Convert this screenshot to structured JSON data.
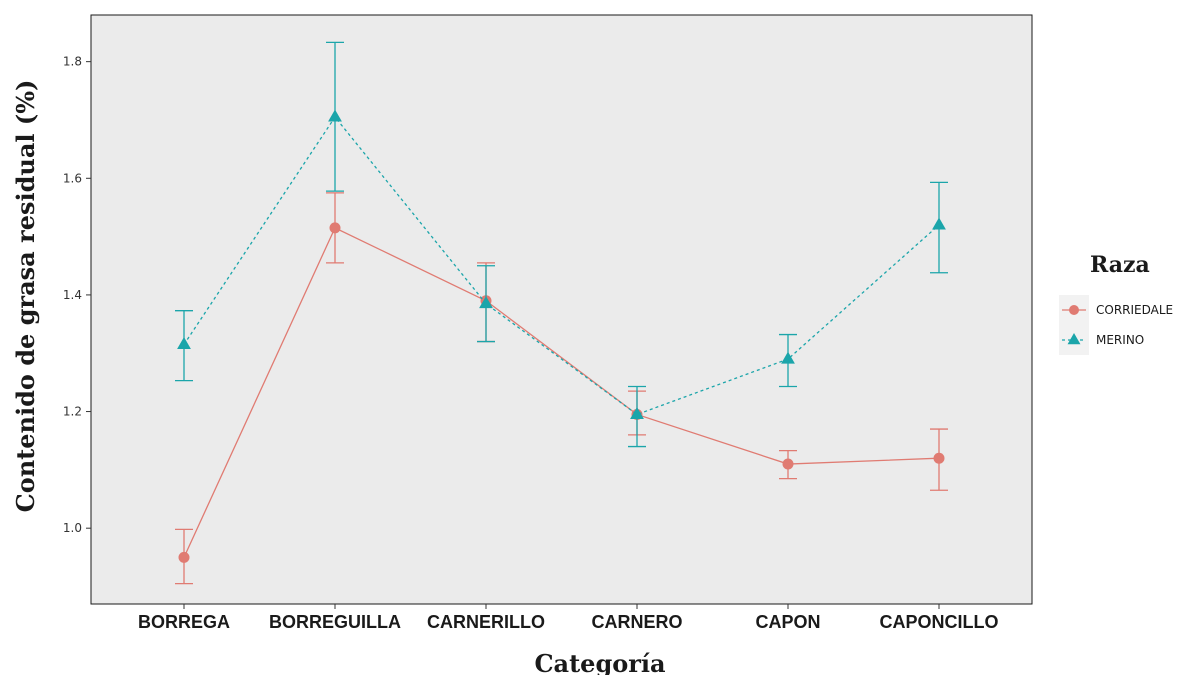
{
  "chart_data": {
    "type": "line",
    "xlabel": "Categoría",
    "ylabel": "Contenido de grasa residual (%)",
    "categories": [
      "BORREGA",
      "BORREGUILLA",
      "CARNERILLO",
      "CARNERO",
      "CAPON",
      "CAPONCILLO"
    ],
    "ylim": [
      0.87,
      1.88
    ],
    "yticks": [
      1.0,
      1.2,
      1.4,
      1.6,
      1.8
    ],
    "ytick_labels": [
      "1.0",
      "1.2",
      "1.4",
      "1.6",
      "1.8"
    ],
    "grid": false,
    "legend": {
      "title": "Raza",
      "placement": "right"
    },
    "series": [
      {
        "name": "CORRIEDALE",
        "color": "#e07b72",
        "marker": "circle",
        "line_style": "solid",
        "values": [
          0.95,
          1.515,
          1.39,
          1.195,
          1.11,
          1.12
        ],
        "error_low": [
          0.905,
          1.455,
          1.32,
          1.16,
          1.085,
          1.065
        ],
        "error_high": [
          0.998,
          1.575,
          1.455,
          1.235,
          1.133,
          1.17
        ]
      },
      {
        "name": "MERINO",
        "color": "#1ba5aa",
        "marker": "triangle",
        "line_style": "dotted",
        "values": [
          1.315,
          1.705,
          1.385,
          1.195,
          1.29,
          1.52
        ],
        "error_low": [
          1.253,
          1.578,
          1.32,
          1.14,
          1.243,
          1.438
        ],
        "error_high": [
          1.373,
          1.833,
          1.45,
          1.243,
          1.332,
          1.593
        ]
      }
    ]
  }
}
